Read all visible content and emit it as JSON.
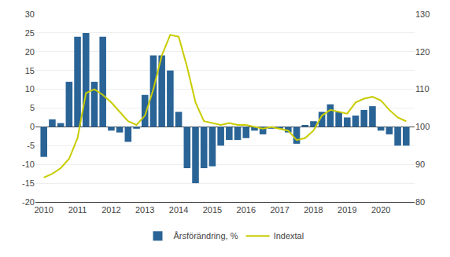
{
  "chart_data": {
    "type": "bar",
    "x": [
      2010,
      2010.25,
      2010.5,
      2010.75,
      2011,
      2011.25,
      2011.5,
      2011.75,
      2012,
      2012.25,
      2012.5,
      2012.75,
      2013,
      2013.25,
      2013.5,
      2013.75,
      2014,
      2014.25,
      2014.5,
      2014.75,
      2015,
      2015.25,
      2015.5,
      2015.75,
      2016,
      2016.25,
      2016.5,
      2016.75,
      2017,
      2017.25,
      2017.5,
      2017.75,
      2018,
      2018.25,
      2018.5,
      2018.75,
      2019,
      2019.25,
      2019.5,
      2019.75,
      2020,
      2020.25,
      2020.5,
      2020.75
    ],
    "series": [
      {
        "name": "Årsförändring, %",
        "type": "bar",
        "color": "#2a6496",
        "values": [
          -8.0,
          2.0,
          1.0,
          12.0,
          24.0,
          25.0,
          12.0,
          24.0,
          -1.0,
          -1.5,
          -4.0,
          -0.5,
          8.5,
          19.0,
          19.0,
          15.0,
          4.0,
          -11.0,
          -15.0,
          -11.0,
          -10.5,
          -5.0,
          -3.5,
          -3.5,
          -3.0,
          -1.0,
          -2.0,
          -0.5,
          -0.5,
          -1.5,
          -4.5,
          0.5,
          1.5,
          4.0,
          6.0,
          4.0,
          2.5,
          3.0,
          4.5,
          5.5,
          -1.0,
          -2.0,
          -5.0,
          -5.0
        ]
      },
      {
        "name": "Indextal",
        "type": "line",
        "color": "#c8cc00",
        "axis": "y2",
        "values": [
          86.5,
          87.5,
          89.0,
          91.5,
          97.0,
          109.0,
          110.0,
          108.5,
          106.5,
          104.0,
          101.5,
          100.5,
          103.0,
          110.0,
          119.0,
          124.5,
          124.0,
          116.0,
          106.5,
          101.5,
          101.0,
          100.5,
          101.0,
          100.5,
          100.5,
          100.0,
          99.5,
          100.0,
          99.5,
          99.0,
          96.5,
          97.0,
          99.0,
          103.0,
          104.5,
          104.0,
          103.5,
          106.5,
          107.5,
          108.0,
          107.0,
          104.5,
          102.5,
          101.5
        ]
      }
    ],
    "xlim": [
      2009.75,
      2021.0
    ],
    "xticks": [
      2010,
      2011,
      2012,
      2013,
      2014,
      2015,
      2016,
      2017,
      2018,
      2019,
      2020
    ],
    "ylim": [
      -20,
      30
    ],
    "yticks": [
      -20,
      -15,
      -10,
      -5,
      0,
      5,
      10,
      15,
      20,
      25,
      30
    ],
    "y2lim": [
      80,
      130
    ],
    "y2ticks": [
      80,
      90,
      100,
      110,
      120,
      130
    ],
    "grid": true,
    "legend": "bottom"
  }
}
